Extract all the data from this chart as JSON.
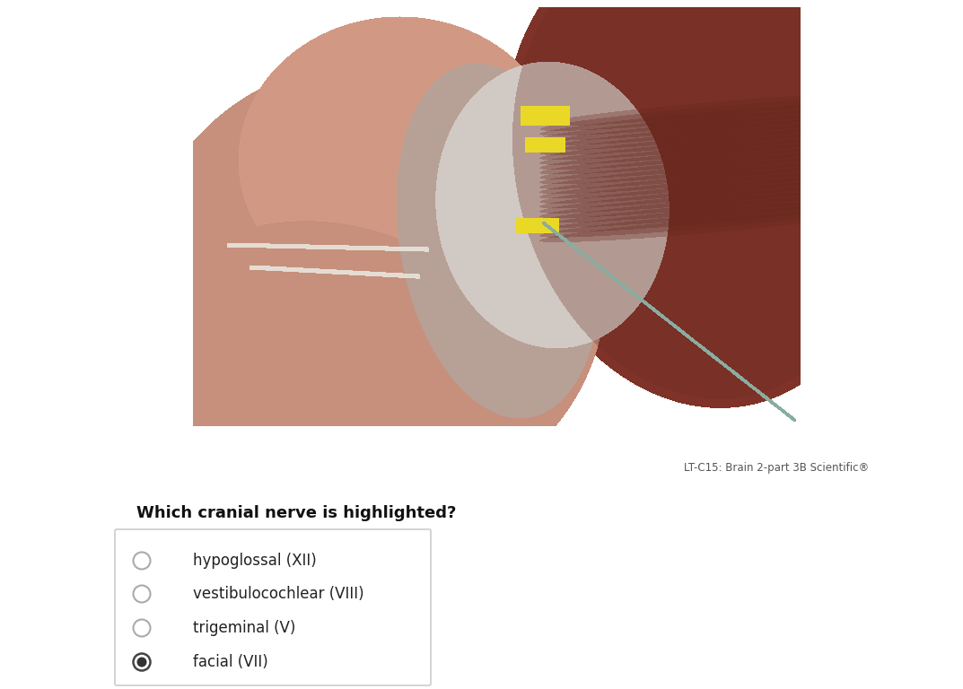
{
  "title": "Which cranial nerve is highlighted?",
  "title_fontsize": 13,
  "title_fontweight": "bold",
  "options": [
    "hypoglossal (XII)",
    "vestibulocochlear (VIII)",
    "trigeminal (V)",
    "facial (VII)"
  ],
  "selected_index": 3,
  "caption": "LT-C15: Brain 2-part 3B Scientific®",
  "caption_fontsize": 8.5,
  "bg_color": "#ffffff",
  "option_fontsize": 12,
  "radio_color_empty": "#aaaaaa",
  "radio_color_selected": "#333333"
}
